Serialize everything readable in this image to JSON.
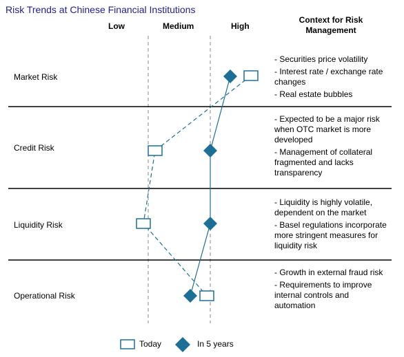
{
  "title": "Risk Trends at Chinese Financial Institutions",
  "columns": {
    "low": "Low",
    "medium": "Medium",
    "high": "High",
    "context": "Context for Risk Management"
  },
  "rows": [
    {
      "label": "Market Risk",
      "today": "High",
      "in_5_years": "High",
      "notes": [
        "- Securities price volatility",
        "- Interest rate / exchange rate changes",
        "- Real estate bubbles"
      ]
    },
    {
      "label": "Credit Risk",
      "today": "Low",
      "in_5_years": "Medium",
      "notes": [
        "- Expected to be a major risk when OTC market is more developed",
        "- Management of collateral fragmented and lacks transparency"
      ]
    },
    {
      "label": "Liquidity Risk",
      "today": "Low",
      "in_5_years": "Medium",
      "notes": [
        "- Liquidity is highly volatile, dependent on the market",
        "- Basel regulations incorporate more stringent measures for liquidity risk"
      ]
    },
    {
      "label": "Operational Risk",
      "today": "Medium",
      "in_5_years": "Medium",
      "notes": [
        "- Growth in external fraud risk",
        "- Requirements to improve internal controls and automation"
      ]
    }
  ],
  "legend": {
    "today": "Today",
    "in_5_years": "In 5 years"
  },
  "colors": {
    "title": "#1f1f8f",
    "marker": "#1d6f96",
    "grid": "#888888"
  }
}
